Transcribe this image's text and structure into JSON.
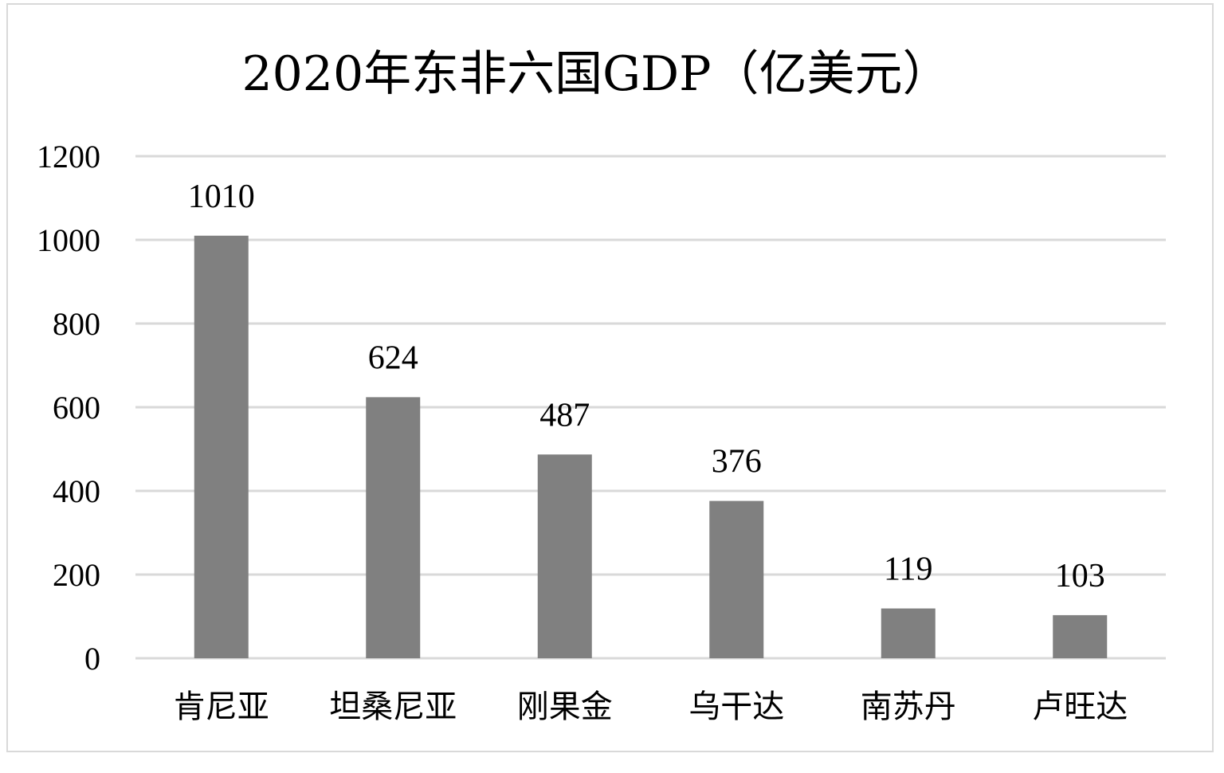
{
  "chart_data": {
    "type": "bar",
    "title": "2020年东非六国GDP（亿美元）",
    "categories": [
      "肯尼亚",
      "坦桑尼亚",
      "刚果金",
      "乌干达",
      "南苏丹",
      "卢旺达"
    ],
    "values": [
      1010,
      624,
      487,
      376,
      119,
      103
    ],
    "data_labels": [
      "1010",
      "624",
      "487",
      "376",
      "119",
      "103"
    ],
    "yticks": [
      "0",
      "200",
      "400",
      "600",
      "800",
      "1000",
      "1200"
    ],
    "ylim": [
      0,
      1200
    ],
    "grid": true,
    "bar_color": "#808080",
    "grid_color": "#d9d9d9"
  }
}
